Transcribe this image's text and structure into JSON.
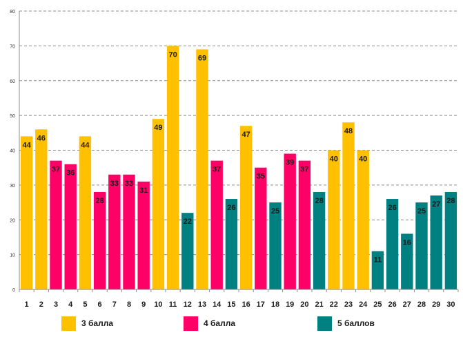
{
  "chart_data": {
    "type": "bar",
    "title": "",
    "xlabel": "",
    "ylabel": "",
    "ylim": [
      0,
      80
    ],
    "yticks": [
      0,
      10,
      20,
      30,
      40,
      50,
      60,
      70,
      80
    ],
    "grid": true,
    "categories": [
      "1",
      "2",
      "3",
      "4",
      "5",
      "6",
      "7",
      "8",
      "9",
      "10",
      "11",
      "12",
      "13",
      "14",
      "15",
      "16",
      "17",
      "18",
      "19",
      "20",
      "21",
      "22",
      "23",
      "24",
      "25",
      "26",
      "27",
      "28",
      "29",
      "30"
    ],
    "values": [
      44,
      46,
      37,
      36,
      44,
      28,
      33,
      33,
      31,
      49,
      70,
      22,
      69,
      37,
      26,
      47,
      35,
      25,
      39,
      37,
      28,
      40,
      48,
      40,
      11,
      26,
      16,
      25,
      27,
      28
    ],
    "groups": [
      0,
      0,
      1,
      1,
      0,
      1,
      1,
      1,
      1,
      0,
      0,
      2,
      0,
      1,
      2,
      0,
      1,
      2,
      1,
      1,
      2,
      0,
      0,
      0,
      2,
      2,
      2,
      2,
      2,
      2
    ],
    "series": [
      {
        "name": "3 балла",
        "color": "#FFC000"
      },
      {
        "name": "4 балла",
        "color": "#FF0066"
      },
      {
        "name": "5 баллов",
        "color": "#008080"
      }
    ],
    "legend_position": "bottom"
  }
}
